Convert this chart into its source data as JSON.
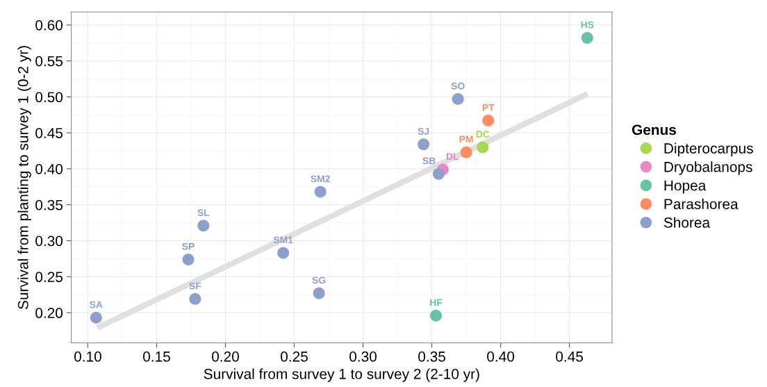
{
  "chart_data": {
    "type": "scatter",
    "xlabel": "Survival from survey 1 to survey 2 (2-10 yr)",
    "ylabel": "Survival from planting to survey 1 (0-2 yr)",
    "legend_title": "Genus",
    "legend": "right",
    "grid": true,
    "marker": "circle",
    "xlim": [
      0.088,
      0.481
    ],
    "ylim": [
      0.158,
      0.618
    ],
    "xticks": [
      {
        "value": 0.1,
        "label": "0.10"
      },
      {
        "value": 0.15,
        "label": "0.15"
      },
      {
        "value": 0.2,
        "label": "0.20"
      },
      {
        "value": 0.25,
        "label": "0.25"
      },
      {
        "value": 0.3,
        "label": "0.30"
      },
      {
        "value": 0.35,
        "label": "0.35"
      },
      {
        "value": 0.4,
        "label": "0.40"
      },
      {
        "value": 0.45,
        "label": "0.45"
      }
    ],
    "yticks": [
      {
        "value": 0.2,
        "label": "0.20"
      },
      {
        "value": 0.25,
        "label": "0.25"
      },
      {
        "value": 0.3,
        "label": "0.30"
      },
      {
        "value": 0.35,
        "label": "0.35"
      },
      {
        "value": 0.4,
        "label": "0.40"
      },
      {
        "value": 0.45,
        "label": "0.45"
      },
      {
        "value": 0.5,
        "label": "0.50"
      },
      {
        "value": 0.55,
        "label": "0.55"
      },
      {
        "value": 0.6,
        "label": "0.60"
      }
    ],
    "series": [
      {
        "type": "line",
        "marker": "none",
        "color": "#e0e0e0",
        "x": [
          0.107,
          0.463
        ],
        "values": [
          0.179,
          0.504
        ]
      },
      {
        "name": "Dipterocarpus",
        "color": "#a6d854",
        "x": [
          0.387
        ],
        "values": [
          0.43
        ],
        "value_labels": [
          "DC"
        ]
      },
      {
        "name": "Dryobalanops",
        "color": "#e78ac3",
        "x": [
          0.358
        ],
        "values": [
          0.399
        ],
        "value_labels": [
          "DL"
        ]
      },
      {
        "name": "Hopea",
        "color": "#66c2a5",
        "x": [
          0.353,
          0.463
        ],
        "values": [
          0.196,
          0.582
        ],
        "value_labels": [
          "HF",
          "HS"
        ]
      },
      {
        "name": "Parashorea",
        "color": "#fc8d62",
        "x": [
          0.375,
          0.391
        ],
        "values": [
          0.423,
          0.467
        ],
        "value_labels": [
          "PM",
          "PT"
        ]
      },
      {
        "name": "Shorea",
        "color": "#8da0cb",
        "x": [
          0.106,
          0.178,
          0.173,
          0.184,
          0.242,
          0.268,
          0.269,
          0.355,
          0.344,
          0.369
        ],
        "values": [
          0.193,
          0.219,
          0.274,
          0.321,
          0.283,
          0.227,
          0.368,
          0.393,
          0.434,
          0.497
        ],
        "value_labels": [
          "SA",
          "SF",
          "SP",
          "SL",
          "SM1",
          "SG",
          "SM2",
          "SB",
          "SJ",
          "SO"
        ]
      }
    ]
  }
}
